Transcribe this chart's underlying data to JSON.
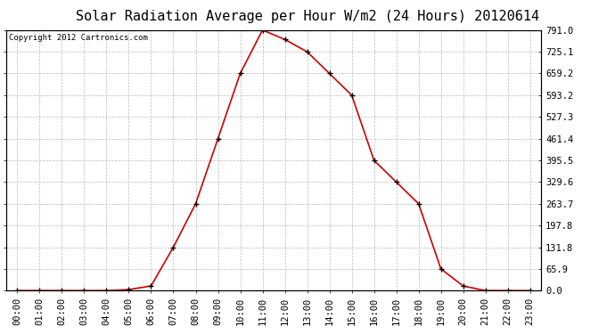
{
  "title": "Solar Radiation Average per Hour W/m2 (24 Hours) 20120614",
  "copyright": "Copyright 2012 Cartronics.com",
  "hours": [
    "00:00",
    "01:00",
    "02:00",
    "03:00",
    "04:00",
    "05:00",
    "06:00",
    "07:00",
    "08:00",
    "09:00",
    "10:00",
    "11:00",
    "12:00",
    "13:00",
    "14:00",
    "15:00",
    "16:00",
    "17:00",
    "18:00",
    "19:00",
    "20:00",
    "21:00",
    "22:00",
    "23:00"
  ],
  "values": [
    0.0,
    0.0,
    0.0,
    0.0,
    0.0,
    3.0,
    14.0,
    131.8,
    263.7,
    461.4,
    659.2,
    791.0,
    762.5,
    725.1,
    659.2,
    593.2,
    395.5,
    329.6,
    263.7,
    65.9,
    14.0,
    0.0,
    0.0,
    0.0
  ],
  "y_ticks": [
    0.0,
    65.9,
    131.8,
    197.8,
    263.7,
    329.6,
    395.5,
    461.4,
    527.3,
    593.2,
    659.2,
    725.1,
    791.0
  ],
  "line_color": "#cc0000",
  "marker": "+",
  "marker_color": "#000000",
  "bg_color": "#ffffff",
  "grid_color": "#bbbbbb",
  "title_fontsize": 11,
  "copyright_fontsize": 6.5,
  "ylim": [
    0.0,
    791.0
  ],
  "tick_label_fontsize": 7.5
}
